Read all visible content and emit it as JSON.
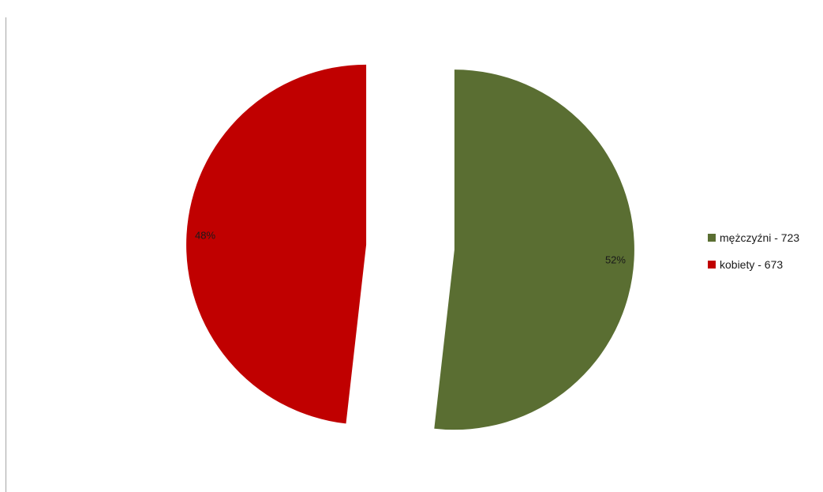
{
  "chart_data": {
    "type": "pie",
    "exploded": true,
    "slices": [
      {
        "name": "mężczyźni - 723",
        "value": 723,
        "percent_label": "52%",
        "color": "#5a6e32"
      },
      {
        "name": "kobiety - 673",
        "value": 673,
        "percent_label": "48%",
        "color": "#c00000"
      }
    ],
    "legend_placement": "right",
    "title": ""
  }
}
